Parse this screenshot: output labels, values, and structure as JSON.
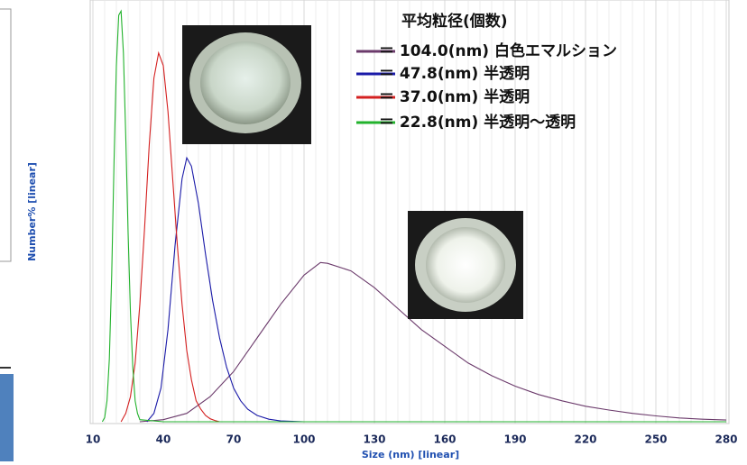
{
  "chart_data": {
    "type": "line",
    "x_label": "Size (nm)   [linear]",
    "y_label": "Number%   [linear]",
    "legend_title": "平均粒径(個数)",
    "xlim": [
      10,
      280
    ],
    "xticks": [
      10,
      40,
      70,
      100,
      130,
      160,
      190,
      220,
      250,
      280
    ],
    "ylim": [
      0,
      100
    ],
    "grid": true,
    "series": [
      {
        "name": "＝ 104.0(nm)  白色エマルション",
        "color": "#6b3a6b",
        "x": [
          30,
          40,
          50,
          60,
          70,
          80,
          90,
          100,
          107,
          110,
          120,
          130,
          140,
          150,
          160,
          170,
          180,
          190,
          200,
          210,
          220,
          230,
          240,
          250,
          260,
          270,
          280
        ],
        "values": [
          0,
          0.5,
          2,
          6,
          12,
          20,
          28,
          35,
          38,
          37.8,
          36,
          32,
          27,
          22,
          18,
          14,
          11,
          8.5,
          6.5,
          5,
          3.7,
          2.8,
          2,
          1.4,
          0.9,
          0.6,
          0.4
        ]
      },
      {
        "name": "＝   47.8(nm)  半透明",
        "color": "#1a1aa8",
        "x": [
          33,
          36,
          39,
          42,
          45,
          48,
          50,
          52,
          55,
          58,
          61,
          64,
          67,
          70,
          73,
          76,
          80,
          85,
          90,
          100
        ],
        "values": [
          0,
          2,
          8,
          22,
          42,
          58,
          63,
          61,
          52,
          40,
          29,
          20,
          13,
          8,
          5,
          3,
          1.5,
          0.6,
          0.2,
          0
        ]
      },
      {
        "name": "＝   37.0(nm)  半透明",
        "color": "#d42020",
        "x": [
          22,
          24,
          26,
          28,
          30,
          32,
          34,
          36,
          38,
          40,
          42,
          44,
          46,
          48,
          50,
          52,
          54,
          56,
          58,
          60,
          62,
          64
        ],
        "values": [
          0,
          2,
          6,
          14,
          28,
          46,
          66,
          82,
          88,
          85,
          74,
          58,
          42,
          28,
          17,
          10,
          5,
          3,
          1.5,
          0.7,
          0.3,
          0
        ]
      },
      {
        "name": "＝   22.8(nm)   半透明～透明",
        "color": "#22b22c",
        "x": [
          14,
          15,
          16,
          17,
          18,
          19,
          20,
          21,
          22,
          23,
          24,
          25,
          26,
          27,
          28,
          29,
          30,
          40,
          280
        ],
        "values": [
          0,
          1,
          5,
          15,
          35,
          62,
          85,
          97,
          98,
          88,
          68,
          45,
          26,
          13,
          5,
          2,
          0.5,
          0,
          0
        ]
      }
    ]
  }
}
